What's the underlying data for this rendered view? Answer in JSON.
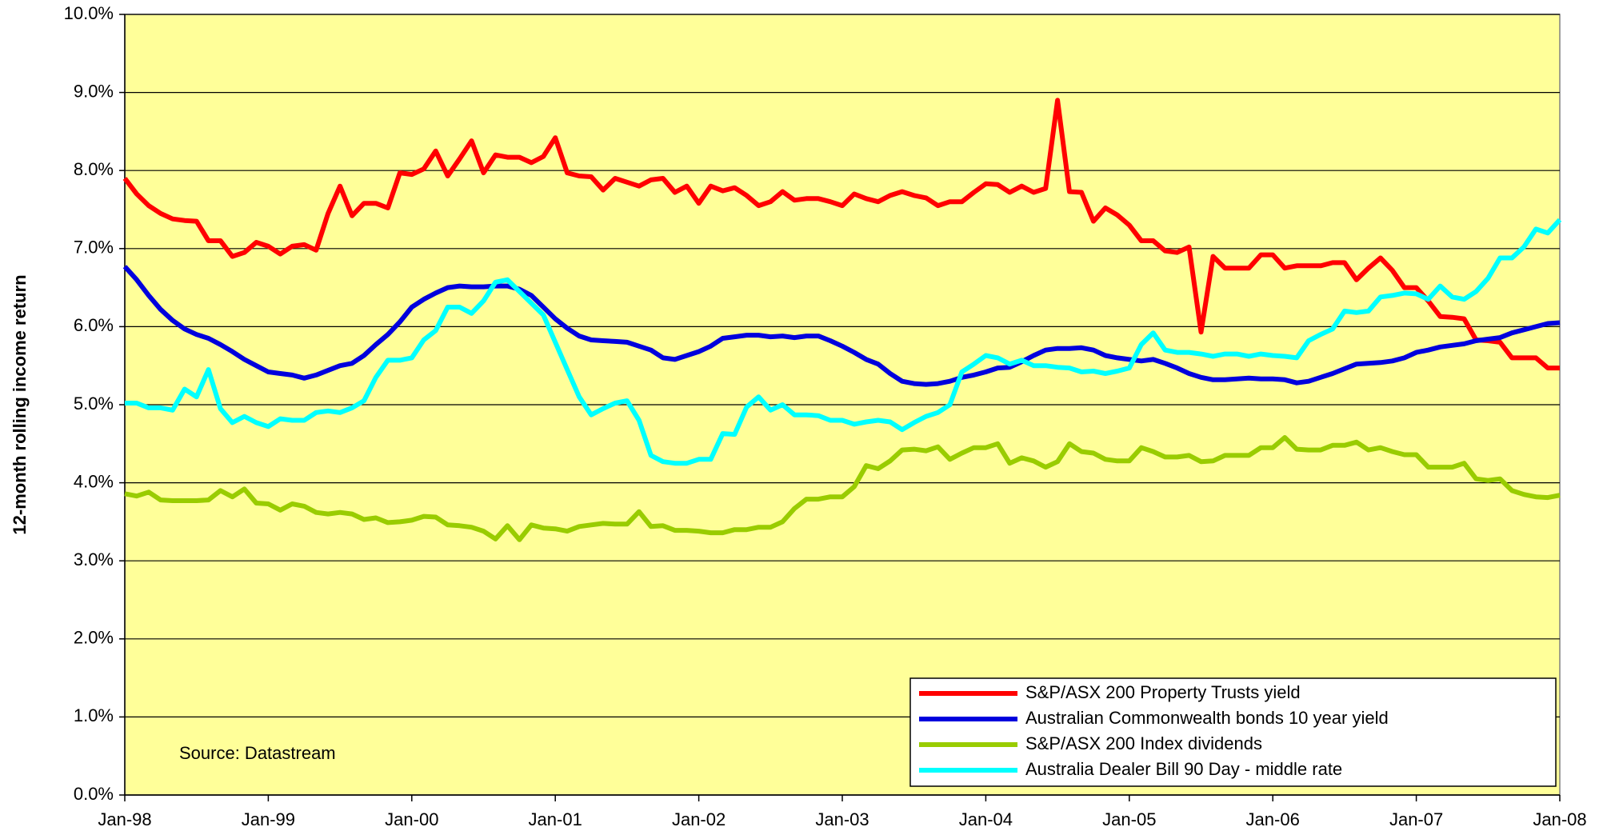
{
  "chart_data": {
    "type": "line",
    "y_label": "12-month rolling income return",
    "annotation": "Source: Datastream",
    "categories": [
      "Jan-98",
      null,
      null,
      null,
      null,
      null,
      null,
      null,
      null,
      null,
      null,
      null,
      "Jan-99",
      null,
      null,
      null,
      null,
      null,
      null,
      null,
      null,
      null,
      null,
      null,
      "Jan-00",
      null,
      null,
      null,
      null,
      null,
      null,
      null,
      null,
      null,
      null,
      null,
      "Jan-01",
      null,
      null,
      null,
      null,
      null,
      null,
      null,
      null,
      null,
      null,
      null,
      "Jan-02",
      null,
      null,
      null,
      null,
      null,
      null,
      null,
      null,
      null,
      null,
      null,
      "Jan-03",
      null,
      null,
      null,
      null,
      null,
      null,
      null,
      null,
      null,
      null,
      null,
      "Jan-04",
      null,
      null,
      null,
      null,
      null,
      null,
      null,
      null,
      null,
      null,
      null,
      "Jan-05",
      null,
      null,
      null,
      null,
      null,
      null,
      null,
      null,
      null,
      null,
      null,
      "Jan-06",
      null,
      null,
      null,
      null,
      null,
      null,
      null,
      null,
      null,
      null,
      null,
      "Jan-07",
      null,
      null,
      null,
      null,
      null,
      null,
      null,
      null,
      null,
      null,
      null,
      "Jan-08"
    ],
    "series": [
      {
        "name": "S&P/ASX 200 Property Trusts yield",
        "color": "#ff0000",
        "values": [
          7.9,
          7.7,
          7.55,
          7.45,
          7.38,
          7.36,
          7.35,
          7.1,
          7.1,
          6.9,
          6.95,
          7.08,
          7.03,
          6.93,
          7.03,
          7.05,
          6.98,
          7.45,
          7.8,
          7.42,
          7.58,
          7.58,
          7.52,
          7.97,
          7.95,
          8.02,
          8.25,
          7.93,
          8.15,
          8.38,
          7.97,
          8.2,
          8.17,
          8.17,
          8.1,
          8.18,
          8.42,
          7.97,
          7.93,
          7.92,
          7.75,
          7.9,
          7.85,
          7.8,
          7.88,
          7.9,
          7.72,
          7.8,
          7.58,
          7.8,
          7.74,
          7.78,
          7.68,
          7.55,
          7.6,
          7.73,
          7.62,
          7.64,
          7.64,
          7.6,
          7.55,
          7.7,
          7.64,
          7.6,
          7.68,
          7.73,
          7.68,
          7.65,
          7.55,
          7.6,
          7.6,
          7.72,
          7.83,
          7.82,
          7.72,
          7.8,
          7.72,
          7.77,
          8.9,
          7.73,
          7.72,
          7.35,
          7.52,
          7.43,
          7.3,
          7.1,
          7.1,
          6.97,
          6.95,
          7.02,
          5.93,
          6.9,
          6.75,
          6.75,
          6.75,
          6.92,
          6.92,
          6.75,
          6.78,
          6.78,
          6.78,
          6.82,
          6.82,
          6.6,
          6.75,
          6.88,
          6.72,
          6.5,
          6.5,
          6.33,
          6.13,
          6.12,
          6.1,
          5.83,
          5.82,
          5.8,
          5.6,
          5.6,
          5.6,
          5.47,
          5.47
        ]
      },
      {
        "name": "Australian Commonwealth bonds 10 year yield",
        "color": "#0000dd",
        "values": [
          6.77,
          6.6,
          6.4,
          6.22,
          6.08,
          5.97,
          5.9,
          5.85,
          5.77,
          5.68,
          5.58,
          5.5,
          5.42,
          5.4,
          5.38,
          5.34,
          5.38,
          5.44,
          5.5,
          5.53,
          5.63,
          5.77,
          5.9,
          6.06,
          6.25,
          6.35,
          6.43,
          6.5,
          6.52,
          6.51,
          6.51,
          6.52,
          6.52,
          6.48,
          6.4,
          6.25,
          6.1,
          5.98,
          5.88,
          5.83,
          5.82,
          5.81,
          5.8,
          5.75,
          5.7,
          5.6,
          5.58,
          5.63,
          5.68,
          5.75,
          5.85,
          5.87,
          5.89,
          5.89,
          5.87,
          5.88,
          5.86,
          5.88,
          5.88,
          5.82,
          5.75,
          5.67,
          5.58,
          5.52,
          5.4,
          5.3,
          5.27,
          5.26,
          5.27,
          5.3,
          5.35,
          5.38,
          5.42,
          5.47,
          5.48,
          5.55,
          5.63,
          5.7,
          5.72,
          5.72,
          5.73,
          5.7,
          5.63,
          5.6,
          5.58,
          5.56,
          5.58,
          5.53,
          5.47,
          5.4,
          5.35,
          5.32,
          5.32,
          5.33,
          5.34,
          5.33,
          5.33,
          5.32,
          5.28,
          5.3,
          5.35,
          5.4,
          5.46,
          5.52,
          5.53,
          5.54,
          5.56,
          5.6,
          5.67,
          5.7,
          5.74,
          5.76,
          5.78,
          5.82,
          5.84,
          5.86,
          5.92,
          5.96,
          6.0,
          6.04,
          6.05
        ]
      },
      {
        "name": "S&P/ASX 200 Index dividends",
        "color": "#99cc00",
        "values": [
          3.86,
          3.83,
          3.88,
          3.78,
          3.77,
          3.77,
          3.77,
          3.78,
          3.9,
          3.82,
          3.92,
          3.74,
          3.73,
          3.65,
          3.73,
          3.7,
          3.62,
          3.6,
          3.62,
          3.6,
          3.53,
          3.55,
          3.49,
          3.5,
          3.52,
          3.57,
          3.56,
          3.46,
          3.45,
          3.43,
          3.38,
          3.28,
          3.45,
          3.27,
          3.46,
          3.42,
          3.41,
          3.38,
          3.44,
          3.46,
          3.48,
          3.47,
          3.47,
          3.63,
          3.44,
          3.45,
          3.39,
          3.39,
          3.38,
          3.36,
          3.36,
          3.4,
          3.4,
          3.43,
          3.43,
          3.5,
          3.67,
          3.79,
          3.79,
          3.82,
          3.82,
          3.95,
          4.22,
          4.18,
          4.28,
          4.42,
          4.43,
          4.41,
          4.46,
          4.3,
          4.38,
          4.45,
          4.45,
          4.5,
          4.25,
          4.32,
          4.28,
          4.2,
          4.27,
          4.5,
          4.4,
          4.38,
          4.3,
          4.28,
          4.28,
          4.45,
          4.4,
          4.33,
          4.33,
          4.35,
          4.27,
          4.28,
          4.35,
          4.35,
          4.35,
          4.45,
          4.45,
          4.58,
          4.43,
          4.42,
          4.42,
          4.48,
          4.48,
          4.52,
          4.42,
          4.45,
          4.4,
          4.36,
          4.36,
          4.2,
          4.2,
          4.2,
          4.25,
          4.05,
          4.03,
          4.05,
          3.9,
          3.85,
          3.82,
          3.81,
          3.84
        ]
      },
      {
        "name": "Australia Dealer Bill 90 Day - middle rate",
        "color": "#00ffff",
        "values": [
          5.02,
          5.02,
          4.96,
          4.96,
          4.93,
          5.2,
          5.1,
          5.45,
          4.95,
          4.77,
          4.85,
          4.77,
          4.72,
          4.82,
          4.8,
          4.8,
          4.9,
          4.92,
          4.9,
          4.96,
          5.05,
          5.35,
          5.57,
          5.57,
          5.6,
          5.83,
          5.95,
          6.25,
          6.25,
          6.17,
          6.33,
          6.57,
          6.6,
          6.45,
          6.3,
          6.15,
          5.8,
          5.45,
          5.1,
          4.87,
          4.95,
          5.02,
          5.05,
          4.8,
          4.35,
          4.27,
          4.25,
          4.25,
          4.3,
          4.3,
          4.63,
          4.62,
          4.97,
          5.1,
          4.93,
          5.0,
          4.87,
          4.87,
          4.86,
          4.8,
          4.8,
          4.75,
          4.78,
          4.8,
          4.78,
          4.68,
          4.77,
          4.85,
          4.9,
          5.0,
          5.42,
          5.52,
          5.63,
          5.6,
          5.52,
          5.57,
          5.5,
          5.5,
          5.48,
          5.47,
          5.42,
          5.43,
          5.4,
          5.43,
          5.47,
          5.77,
          5.92,
          5.7,
          5.67,
          5.67,
          5.65,
          5.62,
          5.65,
          5.65,
          5.62,
          5.65,
          5.63,
          5.62,
          5.6,
          5.82,
          5.9,
          5.97,
          6.2,
          6.18,
          6.2,
          6.38,
          6.4,
          6.43,
          6.42,
          6.35,
          6.52,
          6.38,
          6.35,
          6.45,
          6.62,
          6.88,
          6.88,
          7.02,
          7.25,
          7.2,
          7.37
        ]
      }
    ],
    "ylim": [
      0,
      10
    ],
    "yticks": [
      {
        "value": 0,
        "label": "0.0%"
      },
      {
        "value": 1,
        "label": "1.0%"
      },
      {
        "value": 2,
        "label": "2.0%"
      },
      {
        "value": 3,
        "label": "3.0%"
      },
      {
        "value": 4,
        "label": "4.0%"
      },
      {
        "value": 5,
        "label": "5.0%"
      },
      {
        "value": 6,
        "label": "6.0%"
      },
      {
        "value": 7,
        "label": "7.0%"
      },
      {
        "value": 8,
        "label": "8.0%"
      },
      {
        "value": 9,
        "label": "9.0%"
      },
      {
        "value": 10,
        "label": "10.0%"
      }
    ],
    "grid": true,
    "background": "#ffff99",
    "legend": "lower right"
  }
}
